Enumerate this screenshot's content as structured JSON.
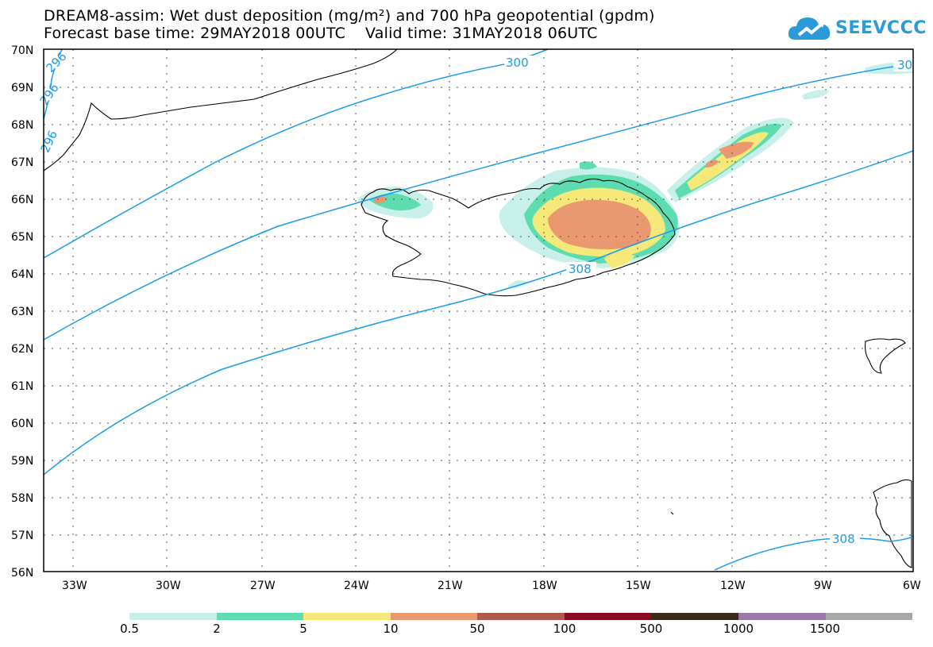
{
  "title": {
    "line1": "DREAM8-assim: Wet dust deposition (mg/m²) and 700 hPa geopotential (gpdm)",
    "line2": "Forecast base time: 29MAY2018 00UTC    Valid time: 31MAY2018 06UTC"
  },
  "logo": {
    "text": "SEEVCCC",
    "icon": "cloud-logo-icon",
    "color": "#2c9ad8"
  },
  "map": {
    "lat_labels": [
      "70N",
      "69N",
      "68N",
      "67N",
      "66N",
      "65N",
      "64N",
      "63N",
      "62N",
      "61N",
      "60N",
      "59N",
      "58N",
      "57N",
      "56N"
    ],
    "lon_labels": [
      "33W",
      "30W",
      "27W",
      "24W",
      "21W",
      "18W",
      "15W",
      "12W",
      "9W",
      "6W"
    ],
    "contour_labels": [
      "296",
      "296",
      "296",
      "300",
      "30",
      "308",
      "308"
    ],
    "contour_color": "#1a9cec"
  },
  "legend": {
    "colors": [
      "#c8f0ea",
      "#5ddcb0",
      "#f6e97a",
      "#e99870",
      "#b0584c",
      "#8a0a22",
      "#3a2a1a",
      "#9a78a8",
      "#a8a8a8"
    ],
    "labels": [
      "0.5",
      "2",
      "5",
      "10",
      "50",
      "100",
      "500",
      "1000",
      "1500"
    ]
  }
}
